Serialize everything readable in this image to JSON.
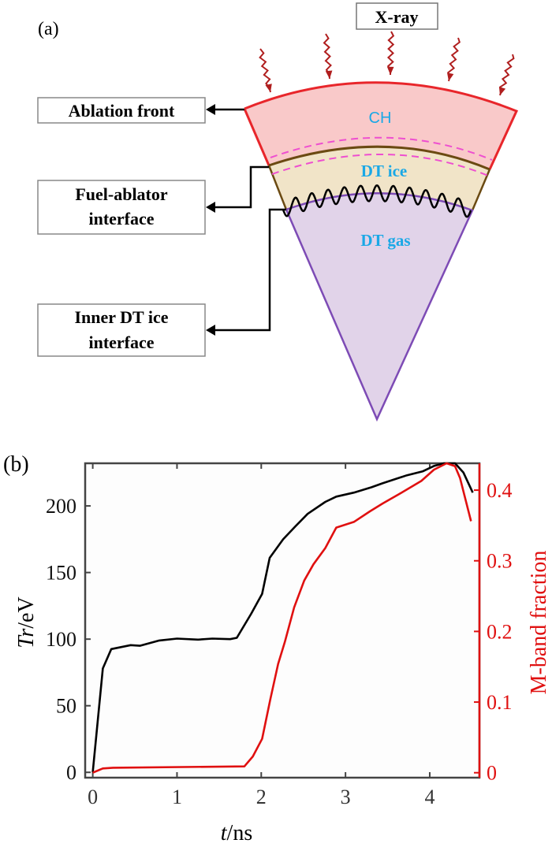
{
  "panel_a": {
    "label": "(a)",
    "xray_label": "X-ray",
    "layers": {
      "ch": "CH",
      "dt_ice": "DT ice",
      "dt_gas": "DT gas"
    },
    "callouts": {
      "ablation_front": [
        "Ablation front"
      ],
      "fuel_ablator": [
        "Fuel-ablator",
        "interface"
      ],
      "inner_dt_ice": [
        "Inner DT ice",
        "interface"
      ]
    },
    "colors": {
      "outer": "#e8262b",
      "ch_fill": "#f9c9c9",
      "ice_fill": "#f1e4c8",
      "gas_fill": "#e1d3e9",
      "brown": "#6b4a12",
      "purple": "#7d4bb5",
      "dash": "#ee4fd0",
      "layer_text": "#1aa8e6",
      "xray_arrow": "#b01e1e"
    }
  },
  "panel_b": {
    "label": "(b)"
  },
  "chart_data": {
    "type": "line",
    "title": "",
    "xlabel": {
      "italic": "t",
      "rest": "/ns"
    },
    "ylabel": {
      "italic": "Tr",
      "rest": "/eV"
    },
    "y2label": "M-band fraction",
    "xlim": [
      -0.09,
      4.59
    ],
    "ylim": [
      -4,
      232
    ],
    "y2lim": [
      -0.007,
      0.438
    ],
    "xticks": [
      "0",
      "1",
      "2",
      "3",
      "4"
    ],
    "yticks": [
      "0",
      "50",
      "100",
      "150",
      "200"
    ],
    "y2ticks": [
      "0",
      "0.1",
      "0.2",
      "0.3",
      "0.4"
    ],
    "grid": false,
    "series": [
      {
        "name": "Tr",
        "axis": "left",
        "color": "#000000",
        "x": [
          0,
          0.12,
          0.22,
          0.45,
          0.56,
          0.79,
          1.0,
          1.25,
          1.42,
          1.63,
          1.71,
          1.88,
          2.01,
          2.1,
          2.26,
          2.41,
          2.55,
          2.76,
          2.89,
          3.1,
          3.31,
          3.44,
          3.73,
          3.92,
          4.05,
          4.17,
          4.3,
          4.4,
          4.51
        ],
        "y": [
          0,
          78,
          92.5,
          95.5,
          95,
          99,
          100.4,
          99.6,
          100.4,
          100,
          101,
          119,
          134,
          161,
          175,
          185,
          194,
          203,
          207,
          210,
          214,
          217,
          223,
          226,
          230,
          232,
          232,
          225,
          210
        ]
      },
      {
        "name": "M-band fraction",
        "axis": "right",
        "color": "#e01010",
        "x": [
          0,
          0.12,
          0.24,
          1.8,
          1.9,
          2.01,
          2.11,
          2.2,
          2.28,
          2.39,
          2.51,
          2.62,
          2.76,
          2.89,
          3.1,
          3.29,
          3.44,
          3.63,
          3.9,
          4.05,
          4.2,
          4.3,
          4.36,
          4.49
        ],
        "y": [
          0,
          0.006,
          0.007,
          0.009,
          0.023,
          0.048,
          0.105,
          0.154,
          0.185,
          0.234,
          0.272,
          0.295,
          0.318,
          0.347,
          0.355,
          0.37,
          0.381,
          0.394,
          0.413,
          0.429,
          0.438,
          0.434,
          0.417,
          0.356
        ]
      }
    ]
  }
}
